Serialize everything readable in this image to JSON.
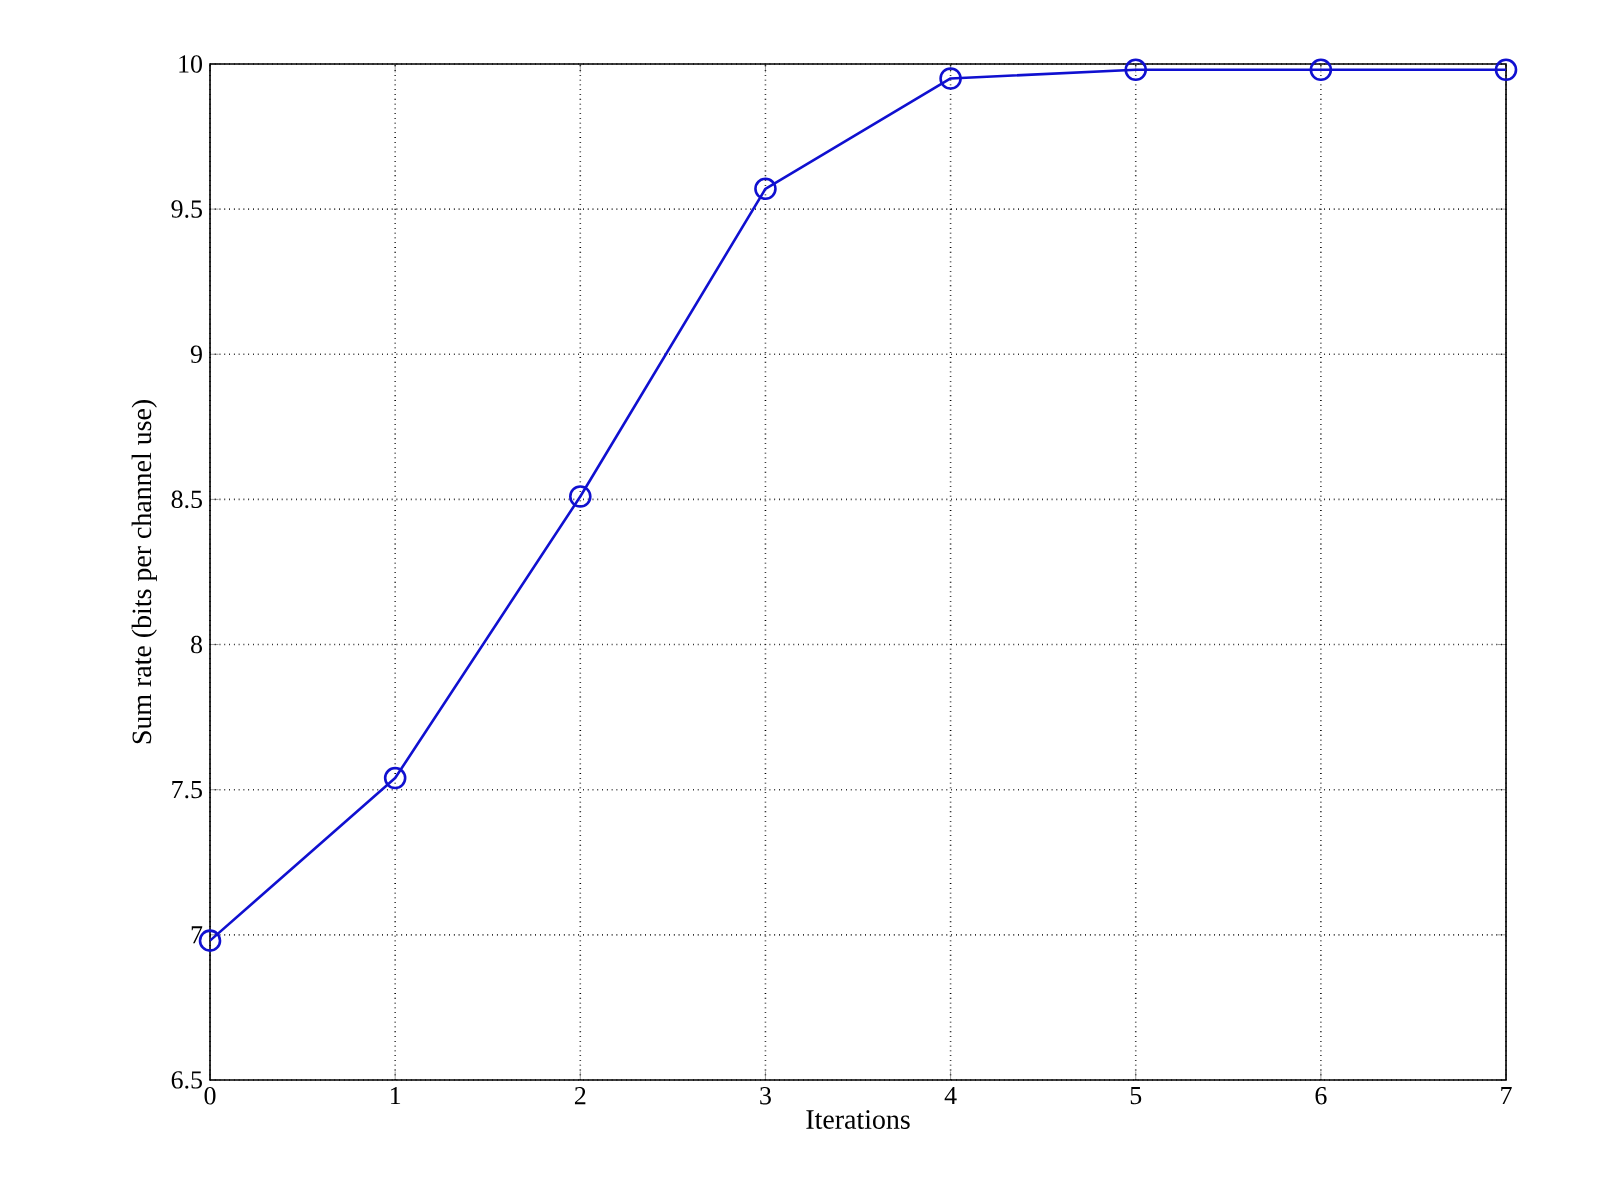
{
  "chart_data": {
    "type": "line",
    "xlabel": "Iterations",
    "ylabel": "Sum rate (bits per channel use)",
    "x": [
      0,
      1,
      2,
      3,
      4,
      5,
      6,
      7
    ],
    "series": [
      {
        "color": "#1010d0",
        "values": [
          6.98,
          7.54,
          8.51,
          9.57,
          9.95,
          9.98,
          9.98,
          9.98
        ]
      }
    ],
    "xlim": [
      0,
      7
    ],
    "ylim": [
      6.5,
      10
    ],
    "xticks": [
      0,
      1,
      2,
      3,
      4,
      5,
      6,
      7
    ],
    "yticks": [
      6.5,
      7,
      7.5,
      8,
      8.5,
      9,
      9.5,
      10
    ],
    "grid": true,
    "marker": "circle",
    "line_style": "solid"
  }
}
